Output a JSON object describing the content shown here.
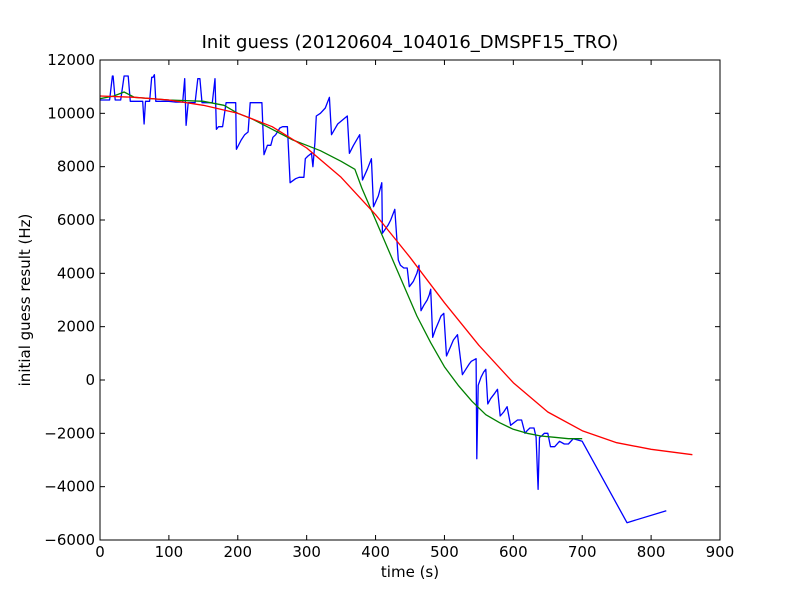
{
  "chart_data": {
    "type": "line",
    "title": "Init guess (20120604_104016_DMSPF15_TRO)",
    "xlabel": "time (s)",
    "ylabel": "initial guess result (Hz)",
    "xlim": [
      0,
      900
    ],
    "ylim": [
      -6000,
      12000
    ],
    "xticks": [
      0,
      100,
      200,
      300,
      400,
      500,
      600,
      700,
      800,
      900
    ],
    "yticks": [
      -6000,
      -4000,
      -2000,
      0,
      2000,
      4000,
      6000,
      8000,
      10000,
      12000
    ],
    "grid": false,
    "legend": "none",
    "series": [
      {
        "color": "#0000ff",
        "points": [
          [
            0,
            10500
          ],
          [
            10,
            10500
          ],
          [
            14,
            10500
          ],
          [
            18,
            11400
          ],
          [
            19,
            11400
          ],
          [
            22,
            10500
          ],
          [
            30,
            10500
          ],
          [
            35,
            11400
          ],
          [
            41,
            11400
          ],
          [
            44,
            10450
          ],
          [
            60,
            10450
          ],
          [
            62,
            10450
          ],
          [
            64,
            9600
          ],
          [
            66,
            10450
          ],
          [
            72,
            10450
          ],
          [
            75,
            11350
          ],
          [
            77,
            11350
          ],
          [
            79,
            11450
          ],
          [
            81,
            10450
          ],
          [
            90,
            10450
          ],
          [
            100,
            10450
          ],
          [
            110,
            10420
          ],
          [
            120,
            10420
          ],
          [
            123,
            11300
          ],
          [
            125,
            9550
          ],
          [
            128,
            10400
          ],
          [
            138,
            10400
          ],
          [
            142,
            11300
          ],
          [
            145,
            11300
          ],
          [
            148,
            10400
          ],
          [
            163,
            10400
          ],
          [
            167,
            11300
          ],
          [
            169,
            9400
          ],
          [
            172,
            9500
          ],
          [
            178,
            9500
          ],
          [
            183,
            10400
          ],
          [
            190,
            10400
          ],
          [
            197,
            10400
          ],
          [
            198,
            8650
          ],
          [
            205,
            9000
          ],
          [
            210,
            9200
          ],
          [
            215,
            9300
          ],
          [
            218,
            10400
          ],
          [
            230,
            10400
          ],
          [
            235,
            10400
          ],
          [
            238,
            8450
          ],
          [
            243,
            8800
          ],
          [
            248,
            8800
          ],
          [
            251,
            9100
          ],
          [
            255,
            9200
          ],
          [
            261,
            9450
          ],
          [
            265,
            9500
          ],
          [
            272,
            9500
          ],
          [
            276,
            7400
          ],
          [
            284,
            7550
          ],
          [
            289,
            7600
          ],
          [
            296,
            7600
          ],
          [
            298,
            8300
          ],
          [
            302,
            8400
          ],
          [
            307,
            8500
          ],
          [
            309,
            8000
          ],
          [
            312,
            8900
          ],
          [
            314,
            9900
          ],
          [
            320,
            10000
          ],
          [
            327,
            10200
          ],
          [
            333,
            10600
          ],
          [
            336,
            9200
          ],
          [
            345,
            9600
          ],
          [
            359,
            9900
          ],
          [
            362,
            8500
          ],
          [
            368,
            8800
          ],
          [
            377,
            9200
          ],
          [
            381,
            7500
          ],
          [
            388,
            7900
          ],
          [
            394,
            8300
          ],
          [
            397,
            6500
          ],
          [
            404,
            6900
          ],
          [
            409,
            7400
          ],
          [
            410,
            5500
          ],
          [
            418,
            5800
          ],
          [
            422,
            6000
          ],
          [
            428,
            6400
          ],
          [
            433,
            4500
          ],
          [
            436,
            4300
          ],
          [
            441,
            4200
          ],
          [
            446,
            4200
          ],
          [
            449,
            3500
          ],
          [
            455,
            3700
          ],
          [
            460,
            4000
          ],
          [
            463,
            4300
          ],
          [
            466,
            2600
          ],
          [
            470,
            2800
          ],
          [
            475,
            3000
          ],
          [
            478,
            3200
          ],
          [
            480,
            3400
          ],
          [
            483,
            1600
          ],
          [
            487,
            1900
          ],
          [
            492,
            2200
          ],
          [
            495,
            2400
          ],
          [
            499,
            2500
          ],
          [
            503,
            900
          ],
          [
            508,
            1200
          ],
          [
            513,
            1500
          ],
          [
            519,
            1700
          ],
          [
            526,
            200
          ],
          [
            531,
            400
          ],
          [
            536,
            600
          ],
          [
            539,
            700
          ],
          [
            546,
            800
          ],
          [
            547,
            -2950
          ],
          [
            549,
            -200
          ],
          [
            553,
            100
          ],
          [
            557,
            300
          ],
          [
            560,
            400
          ],
          [
            563,
            -900
          ],
          [
            567,
            -700
          ],
          [
            573,
            -500
          ],
          [
            577,
            -350
          ],
          [
            581,
            -1350
          ],
          [
            586,
            -1200
          ],
          [
            591,
            -1000
          ],
          [
            596,
            -1700
          ],
          [
            606,
            -1500
          ],
          [
            612,
            -1500
          ],
          [
            617,
            -2000
          ],
          [
            620,
            -1900
          ],
          [
            624,
            -1800
          ],
          [
            630,
            -1800
          ],
          [
            633,
            -2150
          ],
          [
            636,
            -4100
          ],
          [
            638,
            -2150
          ],
          [
            641,
            -2100
          ],
          [
            645,
            -2000
          ],
          [
            650,
            -2000
          ],
          [
            654,
            -2500
          ],
          [
            660,
            -2500
          ],
          [
            667,
            -2300
          ],
          [
            674,
            -2400
          ],
          [
            680,
            -2400
          ],
          [
            687,
            -2200
          ],
          [
            700,
            -2300
          ],
          [
            765,
            -5350
          ],
          [
            822,
            -4900
          ]
        ]
      },
      {
        "color": "#008000",
        "points": [
          [
            0,
            10550
          ],
          [
            20,
            10650
          ],
          [
            35,
            10800
          ],
          [
            50,
            10600
          ],
          [
            100,
            10500
          ],
          [
            150,
            10450
          ],
          [
            180,
            10300
          ],
          [
            200,
            10000
          ],
          [
            220,
            9800
          ],
          [
            250,
            9400
          ],
          [
            280,
            9000
          ],
          [
            300,
            8800
          ],
          [
            320,
            8600
          ],
          [
            350,
            8200
          ],
          [
            370,
            7900
          ],
          [
            380,
            7200
          ],
          [
            400,
            6000
          ],
          [
            420,
            4800
          ],
          [
            440,
            3600
          ],
          [
            460,
            2400
          ],
          [
            480,
            1400
          ],
          [
            500,
            500
          ],
          [
            520,
            -200
          ],
          [
            540,
            -800
          ],
          [
            560,
            -1300
          ],
          [
            580,
            -1600
          ],
          [
            600,
            -1850
          ],
          [
            620,
            -2000
          ],
          [
            640,
            -2100
          ],
          [
            660,
            -2150
          ],
          [
            680,
            -2200
          ],
          [
            700,
            -2200
          ]
        ]
      },
      {
        "color": "#ff0000",
        "points": [
          [
            0,
            10650
          ],
          [
            50,
            10600
          ],
          [
            100,
            10500
          ],
          [
            150,
            10300
          ],
          [
            200,
            10000
          ],
          [
            250,
            9500
          ],
          [
            300,
            8700
          ],
          [
            350,
            7600
          ],
          [
            400,
            6200
          ],
          [
            450,
            4600
          ],
          [
            500,
            2900
          ],
          [
            550,
            1300
          ],
          [
            600,
            -100
          ],
          [
            650,
            -1200
          ],
          [
            700,
            -1900
          ],
          [
            750,
            -2350
          ],
          [
            800,
            -2600
          ],
          [
            860,
            -2800
          ]
        ]
      }
    ]
  }
}
